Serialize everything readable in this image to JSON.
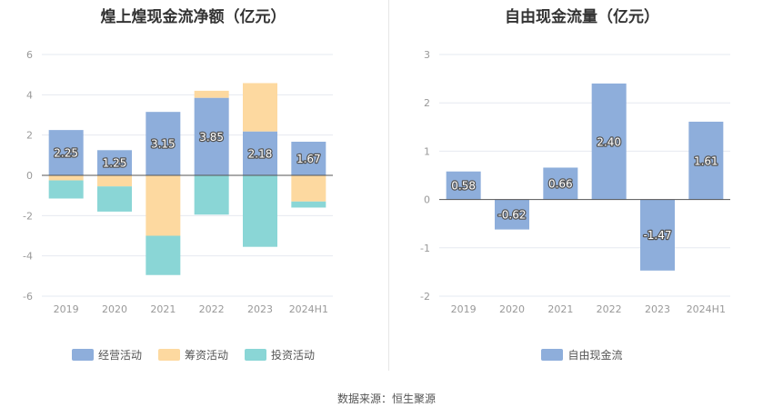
{
  "chart_data": [
    {
      "type": "bar",
      "stacked": true,
      "title": "煌上煌现金流净额（亿元）",
      "categories": [
        "2019",
        "2020",
        "2021",
        "2022",
        "2023",
        "2024H1"
      ],
      "ylim": [
        -6,
        6
      ],
      "yticks": [
        -6,
        -4,
        -2,
        0,
        2,
        4,
        6
      ],
      "grid": true,
      "legend_position": "bottom",
      "series": [
        {
          "name": "经营活动",
          "color": "#8eaedb",
          "values": [
            2.25,
            1.25,
            3.15,
            3.85,
            2.18,
            1.67
          ],
          "labels": [
            "2.25",
            "1.25",
            "3.15",
            "3.85",
            "2.18",
            "1.67"
          ]
        },
        {
          "name": "筹资活动",
          "color": "#fdd9a0",
          "values": [
            -0.25,
            -0.55,
            -3.0,
            0.35,
            2.4,
            -1.3
          ],
          "labels": null
        },
        {
          "name": "投资活动",
          "color": "#8ad6d6",
          "values": [
            -0.9,
            -1.25,
            -1.95,
            -1.95,
            -3.55,
            -0.3
          ],
          "labels": null
        }
      ]
    },
    {
      "type": "bar",
      "title": "自由现金流量（亿元）",
      "categories": [
        "2019",
        "2020",
        "2021",
        "2022",
        "2023",
        "2024H1"
      ],
      "ylim": [
        -2,
        3
      ],
      "yticks": [
        -2,
        -1,
        0,
        1,
        2,
        3
      ],
      "grid": true,
      "legend_position": "bottom",
      "series": [
        {
          "name": "自由现金流",
          "color": "#8eaedb",
          "values": [
            0.58,
            -0.62,
            0.66,
            2.4,
            -1.47,
            1.61
          ],
          "labels": [
            "0.58",
            "-0.62",
            "0.66",
            "2.40",
            "-1.47",
            "1.61"
          ]
        }
      ]
    }
  ],
  "footer": {
    "source": "数据来源：恒生聚源"
  },
  "colors": {
    "grid": "#e6e9f0",
    "zero_line": "#555555",
    "tick_text": "#999999",
    "label_text": "#ffffff",
    "label_stroke": "#555555"
  }
}
